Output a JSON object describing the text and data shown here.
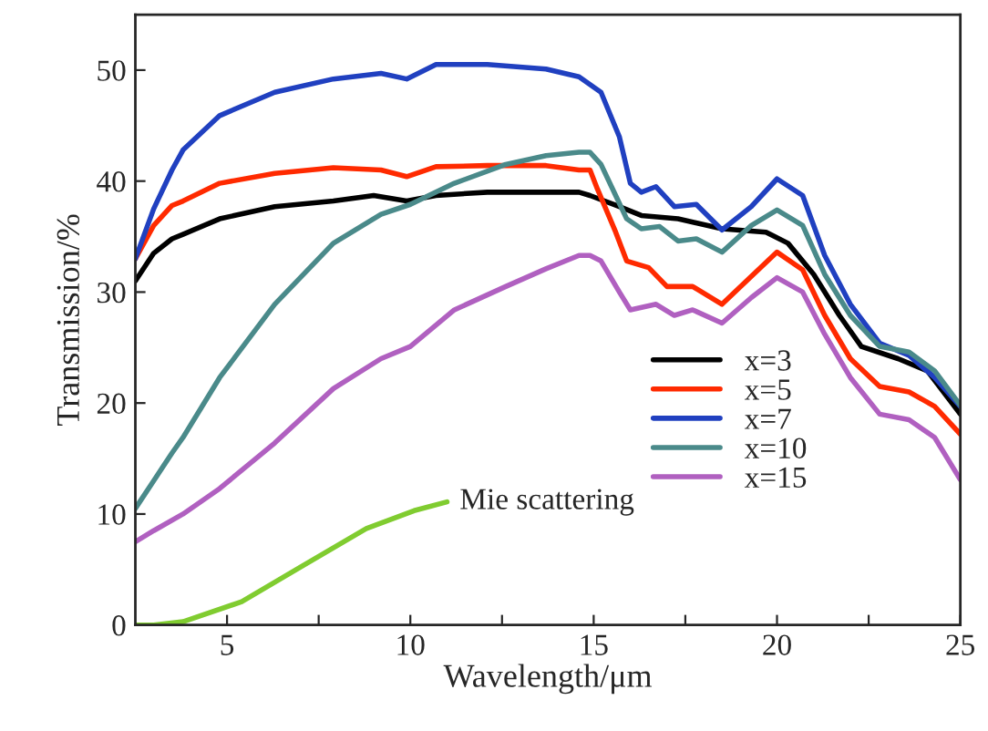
{
  "chart_data": {
    "type": "line",
    "xlabel": "Wavelength/μm",
    "ylabel": "Transmission/%",
    "xlim": [
      2.5,
      25
    ],
    "ylim": [
      0,
      55
    ],
    "xticks": [
      5,
      {
        "value": 7.5,
        "label": null
      },
      10,
      {
        "value": 12.5,
        "label": null
      },
      15,
      {
        "value": 17.5,
        "label": null
      },
      20,
      {
        "value": 22.5,
        "label": null
      },
      25
    ],
    "yticks": [
      0,
      10,
      20,
      30,
      40,
      50
    ],
    "grid": false,
    "legend": "lower right",
    "line_style": "solid",
    "marker": "none",
    "annotations": [
      {
        "text": "Mie scattering",
        "x": 11.0,
        "y": 11.1
      }
    ],
    "series": [
      {
        "name": "x=3",
        "color": "#000000",
        "x": [
          2.5,
          3,
          3.5,
          3.8,
          4.8,
          6.3,
          7.9,
          9.0,
          9.9,
          10.7,
          12.1,
          14.6,
          14.9,
          15.7,
          16.3,
          17.3,
          18.5,
          19.7,
          20.3,
          21.0,
          21.7,
          22.3,
          23.3,
          24.1,
          25
        ],
        "values": [
          31,
          33.5,
          34.8,
          35.2,
          36.6,
          37.7,
          38.2,
          38.7,
          38.2,
          38.7,
          39,
          39,
          38.7,
          37.7,
          36.9,
          36.6,
          35.7,
          35.4,
          34.4,
          31.6,
          27.9,
          25.1,
          24,
          22.9,
          19
        ]
      },
      {
        "name": "x=5",
        "color": "#ff2a00",
        "x": [
          2.5,
          3,
          3.5,
          3.8,
          4.8,
          6.3,
          7.9,
          9.2,
          9.9,
          10.7,
          12.1,
          13.7,
          14.6,
          14.9,
          15.1,
          15.6,
          15.9,
          16.5,
          17.0,
          17.7,
          18.5,
          19.2,
          20.0,
          20.7,
          21.3,
          22.0,
          22.8,
          23.6,
          24.3,
          25
        ],
        "values": [
          33,
          36,
          37.8,
          38.2,
          39.8,
          40.7,
          41.2,
          41,
          40.4,
          41.3,
          41.4,
          41.4,
          41,
          41,
          39.3,
          35.4,
          32.8,
          32.2,
          30.5,
          30.5,
          28.9,
          31.1,
          33.6,
          32,
          27.9,
          24,
          21.5,
          21,
          19.7,
          17.2
        ]
      },
      {
        "name": "x=7",
        "color": "#2040c0",
        "x": [
          2.5,
          3,
          3.5,
          3.8,
          4.8,
          6.3,
          7.9,
          9.2,
          9.9,
          10.7,
          12.1,
          13.7,
          14.6,
          15.2,
          15.7,
          16.0,
          16.3,
          16.7,
          17.2,
          17.8,
          18.5,
          19.3,
          20.0,
          20.7,
          21.3,
          22.0,
          22.8,
          23.6,
          24.3,
          25
        ],
        "values": [
          33,
          37.5,
          41,
          42.8,
          45.9,
          48,
          49.2,
          49.7,
          49.2,
          50.5,
          50.5,
          50.1,
          49.4,
          48,
          44,
          39.8,
          39,
          39.5,
          37.7,
          37.9,
          35.6,
          37.7,
          40.2,
          38.7,
          33.3,
          28.9,
          25.4,
          24.3,
          22.3,
          19.7
        ]
      },
      {
        "name": "x=10",
        "color": "#4a8a8a",
        "x": [
          2.5,
          3,
          3.5,
          3.8,
          4.8,
          6.3,
          7.9,
          9.2,
          10.0,
          11.2,
          12.6,
          13.7,
          14.6,
          14.9,
          15.2,
          15.6,
          15.9,
          16.3,
          16.8,
          17.3,
          17.8,
          18.5,
          19.3,
          20.0,
          20.7,
          21.3,
          22.0,
          22.8,
          23.6,
          24.3,
          25
        ],
        "values": [
          10.5,
          13,
          15.5,
          16.9,
          22.3,
          28.9,
          34.4,
          37,
          37.9,
          39.8,
          41.5,
          42.3,
          42.6,
          42.6,
          41.5,
          38.7,
          36.6,
          35.7,
          35.9,
          34.6,
          34.8,
          33.6,
          36,
          37.4,
          36,
          31.6,
          27.9,
          25.1,
          24.6,
          22.9,
          19.8
        ]
      },
      {
        "name": "x=15",
        "color": "#b060c0",
        "x": [
          2.5,
          3,
          3.8,
          4.8,
          6.3,
          7.9,
          9.2,
          10.0,
          11.2,
          12.6,
          13.7,
          14.6,
          14.9,
          15.2,
          15.7,
          16.0,
          16.7,
          17.2,
          17.7,
          18.5,
          19.3,
          20.0,
          20.7,
          21.3,
          22.0,
          22.8,
          23.6,
          24.3,
          25
        ],
        "values": [
          7.5,
          8.5,
          10,
          12.3,
          16.4,
          21.3,
          24,
          25.1,
          28.4,
          30.5,
          32.1,
          33.3,
          33.3,
          32.8,
          30,
          28.4,
          28.9,
          27.9,
          28.4,
          27.2,
          29.5,
          31.3,
          30,
          26.2,
          22.3,
          19,
          18.5,
          16.9,
          13.1
        ]
      },
      {
        "color": "#80cc30",
        "x": [
          2.5,
          3,
          3.8,
          5.4,
          7.1,
          8.8,
          10.1,
          11.0
        ],
        "values": [
          0,
          0,
          0.3,
          2.1,
          5.4,
          8.7,
          10.3,
          11.1
        ]
      }
    ]
  }
}
